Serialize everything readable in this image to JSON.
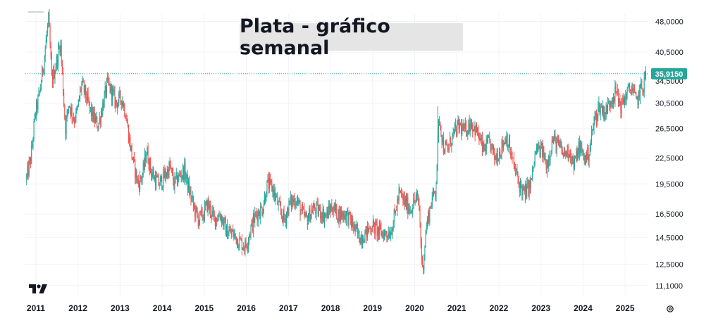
{
  "chart_data": {
    "type": "candlestick",
    "title": "Plata - gráfico semanal",
    "xlabel": "",
    "ylabel": "",
    "scale": "log",
    "ylim": [
      10.5,
      50.0
    ],
    "xlim": [
      2010.75,
      2025.55
    ],
    "y_ticks": [
      "48,0000",
      "40,5000",
      "34,5000",
      "30,5000",
      "26,5000",
      "22,5000",
      "19,5000",
      "16,5000",
      "14,5000",
      "12,5000",
      "11,1000"
    ],
    "x_ticks": [
      "2011",
      "2012",
      "2013",
      "2014",
      "2015",
      "2016",
      "2017",
      "2018",
      "2019",
      "2020",
      "2021",
      "2022",
      "2023",
      "2024",
      "2025"
    ],
    "last_price": 35.915,
    "last_price_label": "35,9150",
    "colors": {
      "up": "#26a69a",
      "down": "#ef5350",
      "price_line": "#26a69a"
    },
    "grid": true,
    "path": [
      [
        2010.78,
        19.8
      ],
      [
        2010.9,
        22.5
      ],
      [
        2011.0,
        28.5
      ],
      [
        2011.1,
        32.0
      ],
      [
        2011.2,
        38.0
      ],
      [
        2011.32,
        48.5
      ],
      [
        2011.4,
        34.5
      ],
      [
        2011.5,
        38.0
      ],
      [
        2011.6,
        43.0
      ],
      [
        2011.72,
        26.5
      ],
      [
        2011.8,
        30.5
      ],
      [
        2011.92,
        28.0
      ],
      [
        2012.0,
        29.0
      ],
      [
        2012.1,
        34.0
      ],
      [
        2012.2,
        32.0
      ],
      [
        2012.3,
        29.5
      ],
      [
        2012.4,
        28.0
      ],
      [
        2012.5,
        27.0
      ],
      [
        2012.6,
        30.0
      ],
      [
        2012.72,
        34.0
      ],
      [
        2012.82,
        32.5
      ],
      [
        2012.92,
        30.5
      ],
      [
        2013.05,
        31.5
      ],
      [
        2013.15,
        29.0
      ],
      [
        2013.25,
        24.5
      ],
      [
        2013.35,
        21.5
      ],
      [
        2013.45,
        19.5
      ],
      [
        2013.55,
        20.5
      ],
      [
        2013.65,
        23.5
      ],
      [
        2013.75,
        21.0
      ],
      [
        2013.85,
        20.0
      ],
      [
        2013.95,
        19.5
      ],
      [
        2014.1,
        20.5
      ],
      [
        2014.2,
        21.5
      ],
      [
        2014.3,
        19.5
      ],
      [
        2014.45,
        20.5
      ],
      [
        2014.55,
        21.0
      ],
      [
        2014.65,
        19.0
      ],
      [
        2014.78,
        17.0
      ],
      [
        2014.88,
        16.0
      ],
      [
        2015.0,
        16.5
      ],
      [
        2015.1,
        17.5
      ],
      [
        2015.25,
        16.0
      ],
      [
        2015.4,
        16.5
      ],
      [
        2015.55,
        15.0
      ],
      [
        2015.7,
        14.8
      ],
      [
        2015.85,
        14.2
      ],
      [
        2016.0,
        13.8
      ],
      [
        2016.12,
        15.2
      ],
      [
        2016.25,
        16.5
      ],
      [
        2016.4,
        17.0
      ],
      [
        2016.52,
        19.5
      ],
      [
        2016.65,
        19.0
      ],
      [
        2016.8,
        17.0
      ],
      [
        2016.92,
        16.0
      ],
      [
        2017.05,
        17.5
      ],
      [
        2017.2,
        18.0
      ],
      [
        2017.35,
        16.5
      ],
      [
        2017.45,
        16.0
      ],
      [
        2017.6,
        17.0
      ],
      [
        2017.75,
        16.8
      ],
      [
        2017.9,
        16.3
      ],
      [
        2018.05,
        17.2
      ],
      [
        2018.2,
        16.5
      ],
      [
        2018.4,
        16.5
      ],
      [
        2018.55,
        15.5
      ],
      [
        2018.7,
        14.5
      ],
      [
        2018.85,
        14.8
      ],
      [
        2019.0,
        15.5
      ],
      [
        2019.15,
        15.0
      ],
      [
        2019.3,
        14.8
      ],
      [
        2019.45,
        15.0
      ],
      [
        2019.55,
        16.5
      ],
      [
        2019.65,
        18.5
      ],
      [
        2019.8,
        17.5
      ],
      [
        2019.92,
        17.0
      ],
      [
        2020.05,
        18.0
      ],
      [
        2020.12,
        17.5
      ],
      [
        2020.2,
        12.0
      ],
      [
        2020.3,
        15.5
      ],
      [
        2020.42,
        17.8
      ],
      [
        2020.52,
        19.0
      ],
      [
        2020.6,
        28.5
      ],
      [
        2020.7,
        24.0
      ],
      [
        2020.8,
        23.5
      ],
      [
        2020.92,
        25.5
      ],
      [
        2021.08,
        27.0
      ],
      [
        2021.2,
        26.0
      ],
      [
        2021.35,
        27.5
      ],
      [
        2021.5,
        26.0
      ],
      [
        2021.65,
        23.5
      ],
      [
        2021.8,
        24.5
      ],
      [
        2021.92,
        22.5
      ],
      [
        2022.05,
        23.5
      ],
      [
        2022.2,
        25.5
      ],
      [
        2022.35,
        22.0
      ],
      [
        2022.5,
        19.5
      ],
      [
        2022.62,
        18.5
      ],
      [
        2022.78,
        19.5
      ],
      [
        2022.9,
        23.5
      ],
      [
        2023.05,
        23.5
      ],
      [
        2023.15,
        21.5
      ],
      [
        2023.3,
        25.0
      ],
      [
        2023.45,
        24.0
      ],
      [
        2023.55,
        23.0
      ],
      [
        2023.7,
        23.5
      ],
      [
        2023.8,
        21.5
      ],
      [
        2023.92,
        24.0
      ],
      [
        2024.05,
        22.5
      ],
      [
        2024.15,
        23.0
      ],
      [
        2024.28,
        27.5
      ],
      [
        2024.4,
        30.0
      ],
      [
        2024.55,
        29.0
      ],
      [
        2024.7,
        31.5
      ],
      [
        2024.8,
        32.5
      ],
      [
        2024.92,
        30.0
      ],
      [
        2025.05,
        32.0
      ],
      [
        2025.18,
        33.5
      ],
      [
        2025.28,
        30.5
      ],
      [
        2025.38,
        33.0
      ],
      [
        2025.45,
        33.5
      ],
      [
        2025.5,
        35.9
      ]
    ],
    "spikes": [
      [
        2011.32,
        49.5
      ],
      [
        2011.72,
        26.0
      ],
      [
        2020.2,
        11.8
      ],
      [
        2020.55,
        30.0
      ],
      [
        2022.62,
        17.5
      ]
    ]
  }
}
